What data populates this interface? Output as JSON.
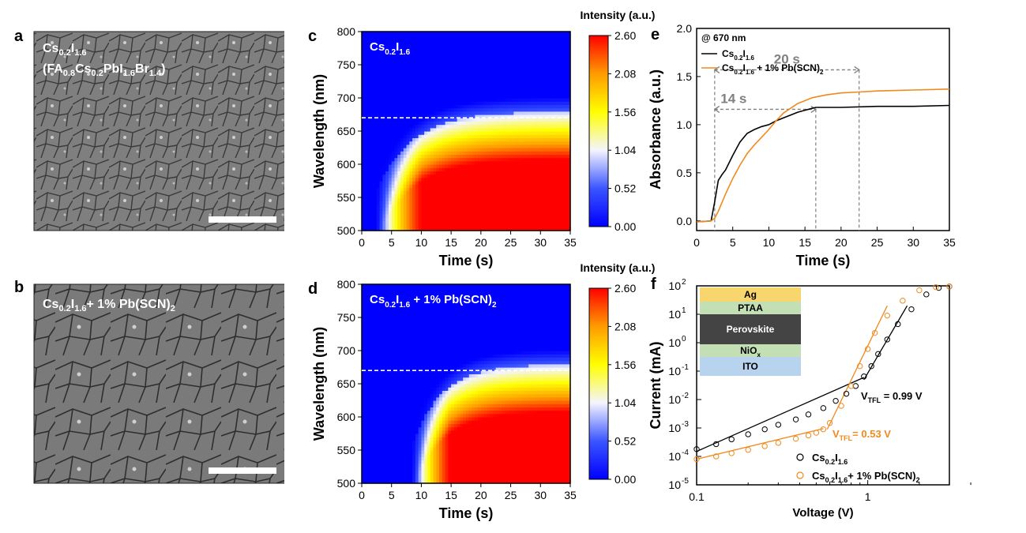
{
  "panels": {
    "a": {
      "letter": "a",
      "composition_line1": "Cs0.2I1.6",
      "composition_line2": "(FA0.8Cs0.2PbI1.6Br1.4)"
    },
    "b": {
      "letter": "b",
      "composition": "Cs0.2I1.6+ 1% Pb(SCN)2"
    },
    "c": {
      "letter": "c",
      "label": "Cs0.2I1.6",
      "colorbar_title": "Intensity (a.u.)",
      "marker_wavelength": 670,
      "onset_time": 4.5
    },
    "d": {
      "letter": "d",
      "label": "Cs0.2I1.6 + 1% Pb(SCN)2",
      "colorbar_title": "Intensity (a.u.)",
      "marker_wavelength": 670,
      "onset_time": 10.5
    },
    "e": {
      "letter": "e"
    },
    "f": {
      "letter": "f"
    }
  },
  "chart_data": [
    {
      "id": "c",
      "type": "heatmap",
      "title": "Cs0.2I1.6",
      "xlabel": "Time (s)",
      "ylabel": "Wavelength (nm)",
      "xlim": [
        0,
        35
      ],
      "ylim": [
        500,
        800
      ],
      "xticks": [
        0,
        5,
        10,
        15,
        20,
        25,
        30,
        35
      ],
      "yticks": [
        500,
        550,
        600,
        650,
        700,
        750,
        800
      ],
      "colorbar": {
        "label": "Intensity (a.u.)",
        "range": [
          0.0,
          2.6
        ],
        "ticks": [
          "0.00",
          "0.52",
          "1.04",
          "1.56",
          "2.08",
          "2.60"
        ]
      },
      "marker_line_nm": 670
    },
    {
      "id": "d",
      "type": "heatmap",
      "title": "Cs0.2I1.6 + 1% Pb(SCN)2",
      "xlabel": "Time (s)",
      "ylabel": "Wavelength (nm)",
      "xlim": [
        0,
        35
      ],
      "ylim": [
        500,
        800
      ],
      "xticks": [
        0,
        5,
        10,
        15,
        20,
        25,
        30,
        35
      ],
      "yticks": [
        500,
        550,
        600,
        650,
        700,
        750,
        800
      ],
      "colorbar": {
        "label": "Intensity (a.u.)",
        "range": [
          0.0,
          2.6
        ],
        "ticks": [
          "0.00",
          "0.52",
          "1.04",
          "1.56",
          "2.08",
          "2.60"
        ]
      },
      "marker_line_nm": 670
    },
    {
      "id": "e",
      "type": "line",
      "title": "",
      "xlabel": "Time (s)",
      "ylabel": "Absorbance (a.u.)",
      "xlim": [
        0,
        35
      ],
      "ylim": [
        -0.1,
        2.0
      ],
      "xticks": [
        0,
        5,
        10,
        15,
        20,
        25,
        30,
        35
      ],
      "yticks": [
        "0.0",
        "0.5",
        "1.0",
        "1.5",
        "2.0"
      ],
      "legend_title": "@ 670 nm",
      "series": [
        {
          "name": "Cs0.2I1.6",
          "color": "#000000",
          "x": [
            0,
            2.0,
            2.5,
            3.0,
            3.5,
            4.0,
            5.0,
            6.0,
            7.0,
            8.0,
            9.0,
            10.0,
            11.0,
            12.0,
            13.0,
            14.0,
            15.0,
            16.0,
            16.5,
            18.0,
            20.0,
            25.0,
            30.0,
            35.0
          ],
          "y": [
            -0.01,
            0.0,
            0.2,
            0.42,
            0.48,
            0.53,
            0.68,
            0.82,
            0.91,
            0.95,
            0.98,
            1.0,
            1.04,
            1.07,
            1.1,
            1.13,
            1.15,
            1.17,
            1.18,
            1.18,
            1.18,
            1.19,
            1.19,
            1.2
          ]
        },
        {
          "name": "Cs0.2I1.6 + 1% Pb(SCN)2",
          "color": "#f08a1e",
          "x": [
            0,
            2.0,
            2.5,
            3.0,
            4.0,
            5.0,
            6.0,
            7.0,
            8.0,
            9.0,
            10.0,
            11.0,
            12.0,
            14.0,
            16.0,
            18.0,
            20.0,
            22.5,
            25.0,
            30.0,
            35.0
          ],
          "y": [
            -0.01,
            0.0,
            0.03,
            0.1,
            0.28,
            0.44,
            0.58,
            0.7,
            0.79,
            0.87,
            0.95,
            1.04,
            1.12,
            1.22,
            1.28,
            1.31,
            1.33,
            1.34,
            1.35,
            1.36,
            1.37
          ]
        }
      ],
      "annotations": [
        {
          "text": "20 s",
          "from": 2.5,
          "to": 22.5,
          "y": 1.57
        },
        {
          "text": "14 s",
          "from": 2.5,
          "to": 16.5,
          "y": 1.16
        }
      ]
    },
    {
      "id": "f",
      "type": "scatter",
      "title": "",
      "xlabel": "Voltage (V)",
      "ylabel": "Current (mA)",
      "xscale": "log",
      "yscale": "log",
      "xlim": [
        0.1,
        3.0
      ],
      "ylim": [
        1e-05,
        100
      ],
      "xticks": [
        "0.1",
        "1"
      ],
      "yticks": [
        {
          "b": "10",
          "e": "-5"
        },
        {
          "b": "10",
          "e": "-4"
        },
        {
          "b": "10",
          "e": "-3"
        },
        {
          "b": "10",
          "e": "-2"
        },
        {
          "b": "10",
          "e": "-1"
        },
        {
          "b": "10",
          "e": "0"
        },
        {
          "b": "10",
          "e": "1"
        },
        {
          "b": "10",
          "e": "2"
        }
      ],
      "series": [
        {
          "name": "Cs0.2I1.6",
          "color": "#000000",
          "x": [
            0.1,
            0.13,
            0.16,
            0.2,
            0.25,
            0.3,
            0.38,
            0.45,
            0.55,
            0.65,
            0.75,
            0.85,
            0.95,
            1.05,
            1.15,
            1.3,
            1.5,
            1.8,
            2.2,
            2.6,
            3.0
          ],
          "y": [
            0.00018,
            0.00027,
            0.0004,
            0.0006,
            0.0009,
            0.0013,
            0.002,
            0.003,
            0.005,
            0.009,
            0.016,
            0.03,
            0.065,
            0.15,
            0.4,
            1.3,
            4.5,
            15,
            50,
            85,
            95
          ]
        },
        {
          "name": "Cs0.2I1.6+ 1% Pb(SCN)2",
          "color": "#f08a1e",
          "x": [
            0.1,
            0.13,
            0.16,
            0.2,
            0.25,
            0.3,
            0.38,
            0.45,
            0.5,
            0.55,
            0.6,
            0.7,
            0.8,
            0.9,
            1.0,
            1.1,
            1.3,
            1.6,
            2.0,
            2.5,
            3.0
          ],
          "y": [
            8e-05,
            0.0001,
            0.00013,
            0.00017,
            0.00023,
            0.0003,
            0.00042,
            0.00055,
            0.00068,
            0.0009,
            0.0015,
            0.006,
            0.03,
            0.15,
            0.6,
            2.2,
            9,
            30,
            70,
            90,
            95
          ]
        }
      ],
      "annotations": [
        {
          "label": "V",
          "sub": "TFL",
          "value": "= 0.99 V",
          "voltage": 0.99
        },
        {
          "label": "V",
          "sub": "TFL",
          "value": "= 0.53 V",
          "voltage": 0.53
        }
      ],
      "inset_layers": [
        "Ag",
        "PTAA",
        "Perovskite",
        "NiOx",
        "ITO"
      ]
    }
  ]
}
